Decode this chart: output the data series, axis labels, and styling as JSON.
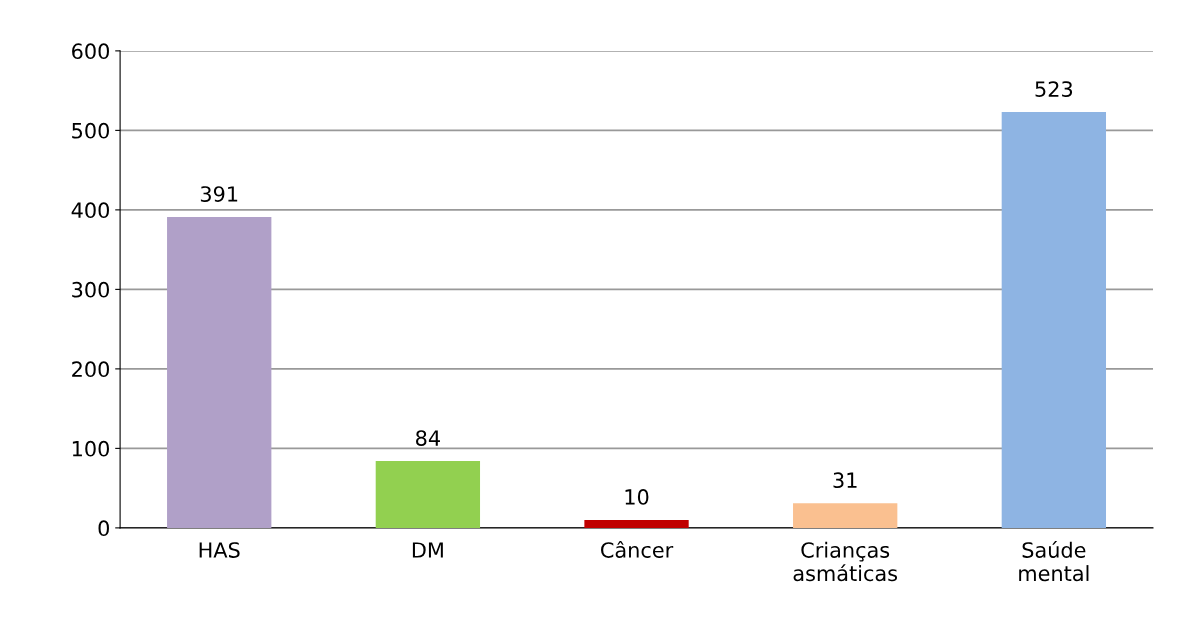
{
  "chart_data": {
    "type": "bar",
    "categories": [
      "HAS",
      "DM",
      "Câncer",
      "Crianças\nasmáticas",
      "Saúde\nmental"
    ],
    "values": [
      391,
      84,
      10,
      31,
      523
    ],
    "colors": [
      "#b0a0c8",
      "#92d050",
      "#c00000",
      "#fac090",
      "#8eb4e3"
    ],
    "ylim": [
      0,
      600
    ],
    "yticks": [
      0,
      100,
      200,
      300,
      400,
      500,
      600
    ],
    "grid": "y",
    "data_labels": true,
    "legend": false
  }
}
